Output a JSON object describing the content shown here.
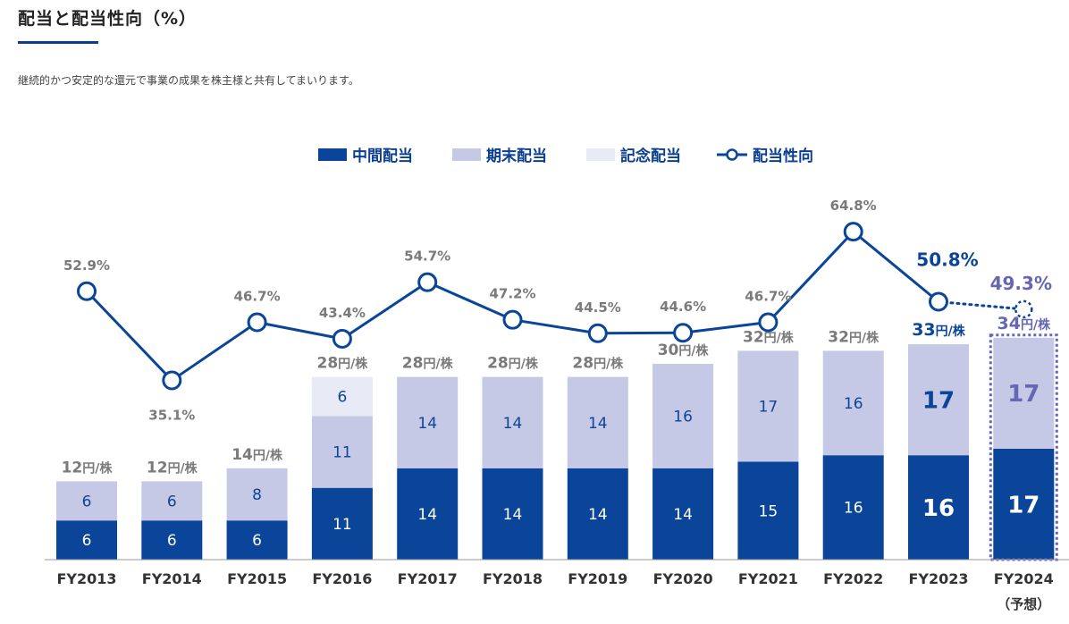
{
  "header": {
    "title": "配当と配当性向（%）",
    "subtitle": "継続的かつ安定的な還元で事業の成果を株主様と共有してまいります。"
  },
  "colors": {
    "interim": "#0b4599",
    "yearEnd": "#c5c9e6",
    "commemorative": "#e8eaf5",
    "payout": "#0b4599",
    "forecast": "#6666b6",
    "label": "#7a7a7a"
  },
  "chart_data": {
    "type": "bar",
    "stacked": true,
    "categories": [
      "FY2013",
      "FY2014",
      "FY2015",
      "FY2016",
      "FY2017",
      "FY2018",
      "FY2019",
      "FY2020",
      "FY2021",
      "FY2022",
      "FY2023",
      "FY2024"
    ],
    "category_note": {
      "index": 11,
      "text": "（予想）"
    },
    "series": [
      {
        "name": "中間配当",
        "values": [
          6,
          6,
          6,
          11,
          14,
          14,
          14,
          14,
          15,
          16,
          16,
          17
        ]
      },
      {
        "name": "期末配当",
        "values": [
          6,
          6,
          8,
          11,
          14,
          14,
          14,
          16,
          17,
          16,
          17,
          17
        ]
      },
      {
        "name": "記念配当",
        "values": [
          0,
          0,
          0,
          6,
          0,
          0,
          0,
          0,
          0,
          0,
          0,
          0
        ]
      }
    ],
    "totals": [
      12,
      12,
      14,
      28,
      28,
      28,
      28,
      30,
      32,
      32,
      33,
      34
    ],
    "total_unit": "円/株",
    "line": {
      "name": "配当性向",
      "values": [
        52.9,
        35.1,
        46.7,
        43.4,
        54.7,
        47.2,
        44.5,
        44.6,
        46.7,
        64.8,
        50.8,
        49.3
      ],
      "labels": [
        "52.9%",
        "35.1%",
        "46.7%",
        "43.4%",
        "54.7%",
        "47.2%",
        "44.5%",
        "44.6%",
        "46.7%",
        "64.8%",
        "50.8%",
        "49.3%"
      ]
    },
    "forecast_index": 11,
    "highlight_index": 10,
    "legend": [
      "中間配当",
      "期末配当",
      "記念配当",
      "配当性向"
    ],
    "legend_position": "top-center"
  }
}
